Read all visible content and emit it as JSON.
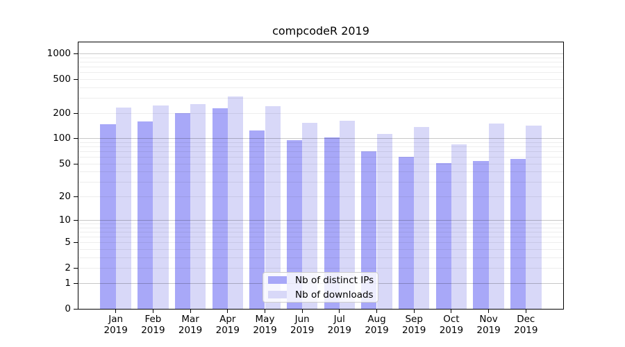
{
  "title": "compcodeR 2019",
  "chart_data": {
    "type": "bar",
    "title": "compcodeR 2019",
    "categories": [
      "Jan 2019",
      "Feb 2019",
      "Mar 2019",
      "Apr 2019",
      "May 2019",
      "Jun 2019",
      "Jul 2019",
      "Aug 2019",
      "Sep 2019",
      "Oct 2019",
      "Nov 2019",
      "Dec 2019"
    ],
    "series": [
      {
        "name": "Nb of distinct IPs",
        "color": "#a8a8f8",
        "values": [
          148,
          160,
          200,
          229,
          124,
          96,
          103,
          71,
          61,
          51,
          54,
          57
        ]
      },
      {
        "name": "Nb of downloads",
        "color": "#d8d8f8",
        "values": [
          235,
          247,
          256,
          313,
          243,
          153,
          162,
          113,
          138,
          85,
          152,
          143
        ]
      }
    ],
    "y_scale": "log10(value+1)",
    "y_ticks": [
      0,
      1,
      2,
      5,
      10,
      20,
      50,
      100,
      200,
      500,
      1000
    ],
    "ylim": [
      0,
      1370
    ],
    "grid": true,
    "legend_position": "inside-bottom-center",
    "xlabel": "",
    "ylabel": ""
  },
  "colors": {
    "bar_ips": "#a8a8f8",
    "bar_downloads": "#d8d8f8",
    "grid_minor": "rgba(0,0,0,0.07)",
    "grid_major": "rgba(0,0,0,0.22)",
    "frame": "#000000",
    "legend_border": "#cccccc",
    "legend_bg": "rgba(255,255,255,0.8)",
    "text": "#000000"
  }
}
